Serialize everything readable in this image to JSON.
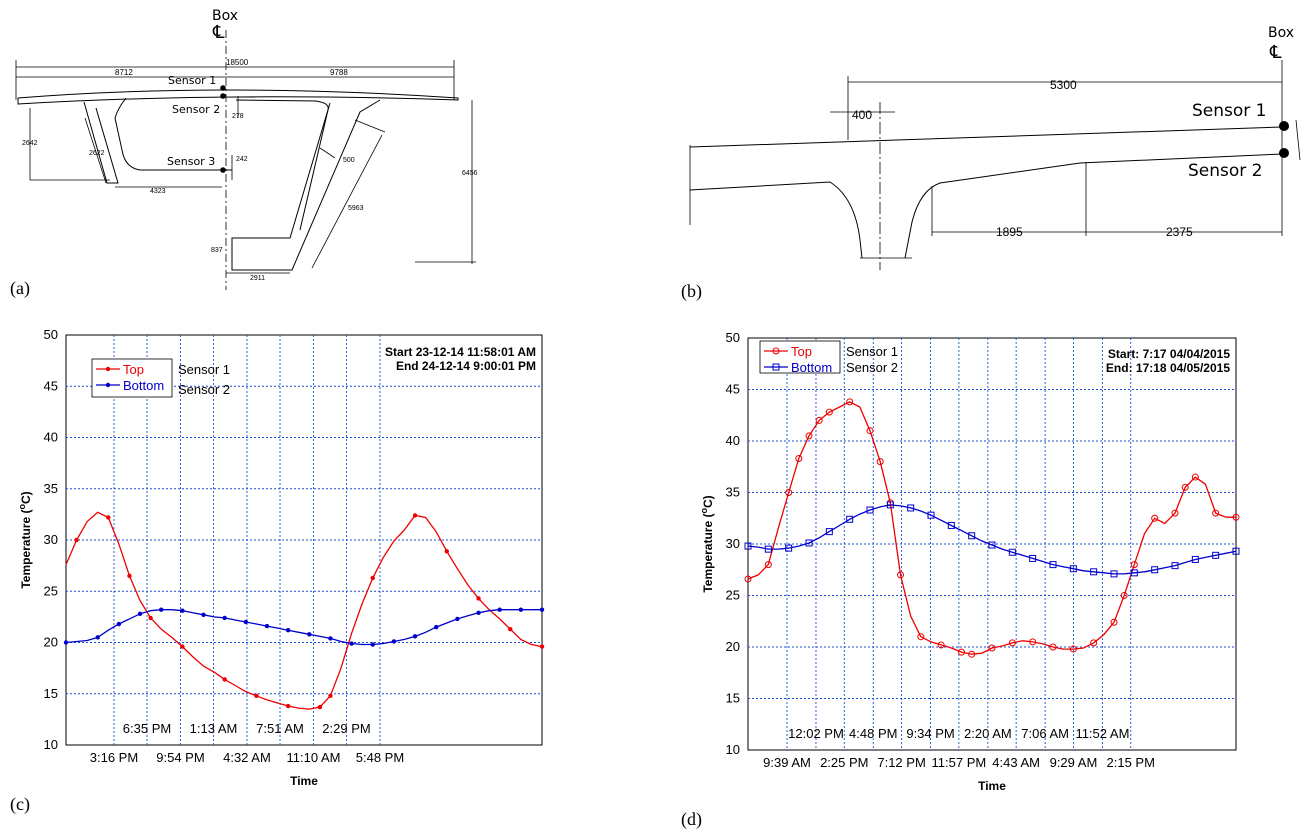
{
  "panels": {
    "a": "(a)",
    "b": "(b)",
    "c": "(c)",
    "d": "(d)"
  },
  "diagram_a": {
    "box_label": "Box",
    "cl_symbol": "℄",
    "sensor1": "Sensor 1",
    "sensor2": "Sensor 2",
    "sensor3": "Sensor 3",
    "dims": {
      "total_width": "18500",
      "left": "8712",
      "right": "9788",
      "d278": "278",
      "d242": "242",
      "d2642": "2642",
      "d2622": "2622",
      "d4323": "4323",
      "d500": "500",
      "d6456": "6456",
      "d5963": "5963",
      "d837": "837",
      "d2911": "2911"
    }
  },
  "diagram_b": {
    "box_label": "Box",
    "cl_symbol": "℄",
    "sensor1": "Sensor 1",
    "sensor2": "Sensor 2",
    "dims": {
      "d5300": "5300",
      "d400": "400",
      "d1895": "1895",
      "d2375": "2375"
    }
  },
  "colors": {
    "top": "#ee0000",
    "bottom": "#0000cc",
    "grid": "#1a4fd6"
  },
  "chart_data": [
    {
      "type": "line",
      "xlabel": "Time",
      "ylabel": "Temperature (°C)",
      "ylabel_parts": {
        "a": "Temperature (",
        "sup": "o",
        "b": "C)"
      },
      "ylim": [
        10,
        50
      ],
      "yticks": [
        "10",
        "15",
        "20",
        "25",
        "30",
        "35",
        "40",
        "45",
        "50"
      ],
      "xlim": [
        0,
        45
      ],
      "xticks_bottom": [
        "3:16 PM",
        "9:54 PM",
        "4:32 AM",
        "11:10 AM",
        "5:48 PM"
      ],
      "xticks_top": [
        "6:35 PM",
        "1:13 AM",
        "7:51 AM",
        "2:29 PM"
      ],
      "grid": true,
      "legend_placement": "top-left",
      "legend": [
        "Top",
        "Bottom"
      ],
      "legend_extra": [
        "Sensor 1",
        "Sensor 2"
      ],
      "info_lines": [
        "Start  23-12-14  11:58:01 AM",
        "End   24-12-14   9:00:01 PM"
      ],
      "series": [
        {
          "name": "Top",
          "marker": "dot",
          "points": [
            [
              0,
              27.6
            ],
            [
              1,
              30
            ],
            [
              2,
              31.8
            ],
            [
              3,
              32.7
            ],
            [
              4,
              32.2
            ],
            [
              5,
              29.6
            ],
            [
              6,
              26.5
            ],
            [
              7,
              24.1
            ],
            [
              8,
              22.4
            ],
            [
              9,
              21.3
            ],
            [
              10,
              20.5
            ],
            [
              11,
              19.6
            ],
            [
              12,
              18.6
            ],
            [
              13,
              17.7
            ],
            [
              14,
              17.1
            ],
            [
              15,
              16.4
            ],
            [
              16,
              15.8
            ],
            [
              17,
              15.2
            ],
            [
              18,
              14.8
            ],
            [
              19,
              14.4
            ],
            [
              20,
              14.1
            ],
            [
              21,
              13.8
            ],
            [
              22,
              13.6
            ],
            [
              23,
              13.5
            ],
            [
              24,
              13.7
            ],
            [
              25,
              14.8
            ],
            [
              26,
              17.5
            ],
            [
              27,
              20.9
            ],
            [
              28,
              23.8
            ],
            [
              29,
              26.3
            ],
            [
              30,
              28.3
            ],
            [
              31,
              29.9
            ],
            [
              32,
              31
            ],
            [
              33,
              32.4
            ],
            [
              34,
              32.2
            ],
            [
              35,
              30.8
            ],
            [
              36,
              28.9
            ],
            [
              37,
              27.2
            ],
            [
              38,
              25.6
            ],
            [
              39,
              24.3
            ],
            [
              40,
              23.2
            ],
            [
              41,
              22.3
            ],
            [
              42,
              21.3
            ],
            [
              43,
              20.3
            ],
            [
              44,
              19.8
            ],
            [
              45,
              19.6
            ]
          ],
          "marker_x": [
            1,
            4,
            6,
            8,
            11,
            15,
            18,
            21,
            24,
            25,
            29,
            33,
            36,
            39,
            42,
            45
          ]
        },
        {
          "name": "Bottom",
          "marker": "dot",
          "points": [
            [
              0,
              20.0
            ],
            [
              1,
              20.1
            ],
            [
              2,
              20.2
            ],
            [
              3,
              20.5
            ],
            [
              4,
              21.2
            ],
            [
              5,
              21.8
            ],
            [
              6,
              22.3
            ],
            [
              7,
              22.8
            ],
            [
              8,
              23.1
            ],
            [
              9,
              23.2
            ],
            [
              10,
              23.2
            ],
            [
              11,
              23.1
            ],
            [
              12,
              22.9
            ],
            [
              13,
              22.7
            ],
            [
              14,
              22.5
            ],
            [
              15,
              22.4
            ],
            [
              16,
              22.2
            ],
            [
              17,
              22.0
            ],
            [
              18,
              21.8
            ],
            [
              19,
              21.6
            ],
            [
              20,
              21.4
            ],
            [
              21,
              21.2
            ],
            [
              22,
              21.0
            ],
            [
              23,
              20.8
            ],
            [
              24,
              20.6
            ],
            [
              25,
              20.4
            ],
            [
              26,
              20.1
            ],
            [
              27,
              19.9
            ],
            [
              28,
              19.8
            ],
            [
              29,
              19.8
            ],
            [
              30,
              19.9
            ],
            [
              31,
              20.1
            ],
            [
              32,
              20.3
            ],
            [
              33,
              20.6
            ],
            [
              34,
              21.0
            ],
            [
              35,
              21.5
            ],
            [
              36,
              21.9
            ],
            [
              37,
              22.3
            ],
            [
              38,
              22.6
            ],
            [
              39,
              22.9
            ],
            [
              40,
              23.1
            ],
            [
              41,
              23.2
            ],
            [
              42,
              23.2
            ],
            [
              43,
              23.2
            ],
            [
              44,
              23.2
            ],
            [
              45,
              23.2
            ]
          ],
          "marker_x": [
            0,
            3,
            5,
            7,
            9,
            11,
            13,
            15,
            17,
            19,
            21,
            23,
            25,
            27,
            29,
            31,
            33,
            35,
            37,
            39,
            41,
            43,
            45
          ]
        }
      ]
    },
    {
      "type": "line",
      "xlabel": "Time",
      "ylabel": "Temperature (°C)",
      "ylabel_parts": {
        "a": "Temperature (",
        "sup": "o",
        "b": "C)"
      },
      "ylim": [
        10,
        50
      ],
      "yticks": [
        "10",
        "15",
        "20",
        "25",
        "30",
        "35",
        "40",
        "45",
        "50"
      ],
      "xlim": [
        0,
        48
      ],
      "xticks_bottom": [
        "9:39 AM",
        "2:25 PM",
        "7:12 PM",
        "11:57 PM",
        "4:43 AM",
        "9:29 AM",
        "2:15 PM"
      ],
      "xticks_top": [
        "12:02 PM",
        "4:48 PM",
        "9:34 PM",
        "2:20 AM",
        "7:06 AM",
        "11:52 AM"
      ],
      "grid": true,
      "legend_placement": "top-left",
      "legend": [
        "Top",
        "Bottom"
      ],
      "legend_extra": [
        "Sensor 1",
        "Sensor 2"
      ],
      "info_lines": [
        "Start:  7:17 04/04/2015",
        "End: 17:18 04/05/2015"
      ],
      "series": [
        {
          "name": "Top",
          "marker": "circle",
          "points": [
            [
              0,
              26.6
            ],
            [
              1,
              27
            ],
            [
              2,
              28
            ],
            [
              3,
              31.6
            ],
            [
              4,
              35
            ],
            [
              5,
              38.3
            ],
            [
              6,
              40.5
            ],
            [
              7,
              42
            ],
            [
              8,
              42.8
            ],
            [
              9,
              43.3
            ],
            [
              10,
              43.8
            ],
            [
              11,
              43.3
            ],
            [
              12,
              41
            ],
            [
              13,
              38
            ],
            [
              14,
              34
            ],
            [
              15,
              27
            ],
            [
              16,
              23
            ],
            [
              17,
              21
            ],
            [
              18,
              20.5
            ],
            [
              19,
              20.2
            ],
            [
              20,
              19.9
            ],
            [
              21,
              19.5
            ],
            [
              22,
              19.3
            ],
            [
              23,
              19.4
            ],
            [
              24,
              19.9
            ],
            [
              25,
              20.1
            ],
            [
              26,
              20.4
            ],
            [
              27,
              20.6
            ],
            [
              28,
              20.5
            ],
            [
              29,
              20.3
            ],
            [
              30,
              20
            ],
            [
              31,
              19.8
            ],
            [
              32,
              19.8
            ],
            [
              33,
              19.9
            ],
            [
              34,
              20.4
            ],
            [
              35,
              21.2
            ],
            [
              36,
              22.4
            ],
            [
              37,
              25
            ],
            [
              38,
              28
            ],
            [
              39,
              31
            ],
            [
              40,
              32.5
            ],
            [
              41,
              32
            ],
            [
              42,
              33
            ],
            [
              43,
              35.5
            ],
            [
              44,
              36.5
            ],
            [
              45,
              35.8
            ],
            [
              46,
              33
            ],
            [
              47,
              32.6
            ],
            [
              48,
              32.6
            ]
          ],
          "marker_x": [
            0,
            2,
            4,
            5,
            6,
            7,
            8,
            10,
            12,
            13,
            14,
            15,
            17,
            19,
            21,
            22,
            24,
            26,
            28,
            30,
            32,
            34,
            36,
            37,
            38,
            40,
            42,
            43,
            44,
            46,
            48
          ]
        },
        {
          "name": "Bottom",
          "marker": "square",
          "points": [
            [
              0,
              29.8
            ],
            [
              1,
              29.7
            ],
            [
              2,
              29.5
            ],
            [
              3,
              29.5
            ],
            [
              4,
              29.6
            ],
            [
              5,
              29.8
            ],
            [
              6,
              30.1
            ],
            [
              7,
              30.6
            ],
            [
              8,
              31.2
            ],
            [
              9,
              31.8
            ],
            [
              10,
              32.4
            ],
            [
              11,
              32.9
            ],
            [
              12,
              33.3
            ],
            [
              13,
              33.6
            ],
            [
              14,
              33.8
            ],
            [
              15,
              33.7
            ],
            [
              16,
              33.5
            ],
            [
              17,
              33.2
            ],
            [
              18,
              32.8
            ],
            [
              19,
              32.3
            ],
            [
              20,
              31.8
            ],
            [
              21,
              31.3
            ],
            [
              22,
              30.8
            ],
            [
              23,
              30.3
            ],
            [
              24,
              29.9
            ],
            [
              25,
              29.5
            ],
            [
              26,
              29.2
            ],
            [
              27,
              28.9
            ],
            [
              28,
              28.6
            ],
            [
              29,
              28.3
            ],
            [
              30,
              28.0
            ],
            [
              31,
              27.8
            ],
            [
              32,
              27.6
            ],
            [
              33,
              27.4
            ],
            [
              34,
              27.3
            ],
            [
              35,
              27.2
            ],
            [
              36,
              27.1
            ],
            [
              37,
              27.1
            ],
            [
              38,
              27.2
            ],
            [
              39,
              27.3
            ],
            [
              40,
              27.5
            ],
            [
              41,
              27.7
            ],
            [
              42,
              27.9
            ],
            [
              43,
              28.2
            ],
            [
              44,
              28.5
            ],
            [
              45,
              28.7
            ],
            [
              46,
              28.9
            ],
            [
              47,
              29.1
            ],
            [
              48,
              29.3
            ]
          ],
          "marker_x": [
            0,
            2,
            4,
            6,
            8,
            10,
            12,
            14,
            16,
            18,
            20,
            22,
            24,
            26,
            28,
            30,
            32,
            34,
            36,
            38,
            40,
            42,
            44,
            46,
            48
          ]
        }
      ]
    }
  ]
}
